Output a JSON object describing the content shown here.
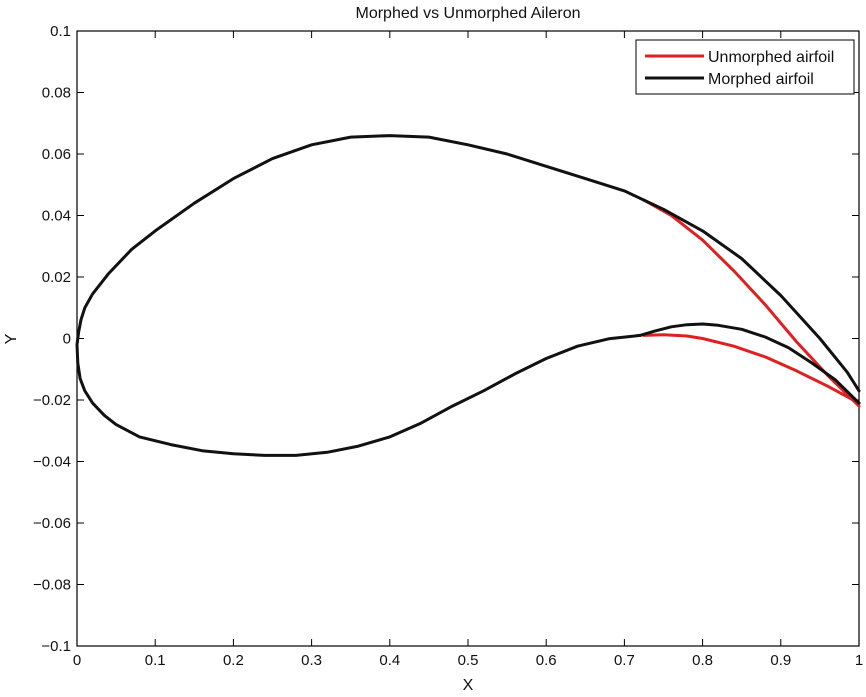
{
  "chart_data": {
    "type": "line",
    "title": "Morphed vs Unmorphed Aileron",
    "xlabel": "X",
    "ylabel": "Y",
    "xlim": [
      0,
      1
    ],
    "ylim": [
      -0.1,
      0.1
    ],
    "x_ticks": [
      0,
      0.1,
      0.2,
      0.3,
      0.4,
      0.5,
      0.6,
      0.7,
      0.8,
      0.9,
      1
    ],
    "x_tick_labels": [
      "0",
      "0.1",
      "0.2",
      "0.3",
      "0.4",
      "0.5",
      "0.6",
      "0.7",
      "0.8",
      "0.9",
      "1"
    ],
    "y_ticks": [
      -0.1,
      -0.08,
      -0.06,
      -0.04,
      -0.02,
      0,
      0.02,
      0.04,
      0.06,
      0.08,
      0.1
    ],
    "y_tick_labels": [
      "−0.1",
      "−0.08",
      "−0.06",
      "−0.04",
      "−0.02",
      "0",
      "0.02",
      "0.04",
      "0.06",
      "0.08",
      "0.1"
    ],
    "grid": false,
    "legend_position": "top-right",
    "series": [
      {
        "name": "Unmorphed airfoil",
        "color": "#e02020",
        "segments": [
          {
            "x": [
              0.725,
              0.76,
              0.8,
              0.84,
              0.88,
              0.92,
              0.96,
              1.0
            ],
            "y": [
              0.045,
              0.04,
              0.032,
              0.022,
              0.011,
              -0.001,
              -0.012,
              -0.022
            ]
          },
          {
            "x": [
              0.725,
              0.75,
              0.78,
              0.8,
              0.84,
              0.88,
              0.92,
              0.96,
              1.0
            ],
            "y": [
              0.001,
              0.0012,
              0.0008,
              0.0,
              -0.0025,
              -0.006,
              -0.0105,
              -0.0155,
              -0.021
            ]
          }
        ]
      },
      {
        "name": "Morphed airfoil",
        "color": "#111111",
        "segments": [
          {
            "x": [
              0.725,
              0.7,
              0.65,
              0.6,
              0.55,
              0.5,
              0.45,
              0.4,
              0.35,
              0.3,
              0.25,
              0.2,
              0.15,
              0.1,
              0.07,
              0.04,
              0.02,
              0.01,
              0.005,
              0.002,
              0.0,
              0.001,
              0.004,
              0.01,
              0.02,
              0.035,
              0.05,
              0.08,
              0.12,
              0.16,
              0.2,
              0.24,
              0.28,
              0.32,
              0.36,
              0.4,
              0.44,
              0.48,
              0.52,
              0.56,
              0.6,
              0.64,
              0.68,
              0.72
            ],
            "y": [
              0.045,
              0.048,
              0.052,
              0.056,
              0.06,
              0.063,
              0.0655,
              0.066,
              0.0655,
              0.063,
              0.0585,
              0.052,
              0.044,
              0.035,
              0.029,
              0.021,
              0.0145,
              0.01,
              0.006,
              0.002,
              -0.002,
              -0.008,
              -0.013,
              -0.017,
              -0.021,
              -0.025,
              -0.028,
              -0.032,
              -0.0345,
              -0.0365,
              -0.0375,
              -0.038,
              -0.038,
              -0.037,
              -0.035,
              -0.032,
              -0.0275,
              -0.022,
              -0.017,
              -0.0115,
              -0.0065,
              -0.0025,
              -0.0001,
              0.001
            ]
          },
          {
            "x": [
              0.725,
              0.75,
              0.8,
              0.85,
              0.9,
              0.95,
              0.985,
              1.0
            ],
            "y": [
              0.045,
              0.042,
              0.035,
              0.026,
              0.014,
              0.0,
              -0.011,
              -0.017
            ]
          },
          {
            "x": [
              0.72,
              0.74,
              0.76,
              0.78,
              0.8,
              0.82,
              0.85,
              0.88,
              0.91,
              0.94,
              0.97,
              1.0
            ],
            "y": [
              0.001,
              0.0025,
              0.0038,
              0.0045,
              0.0047,
              0.0043,
              0.003,
              0.0005,
              -0.003,
              -0.008,
              -0.0135,
              -0.021
            ]
          }
        ]
      }
    ]
  }
}
